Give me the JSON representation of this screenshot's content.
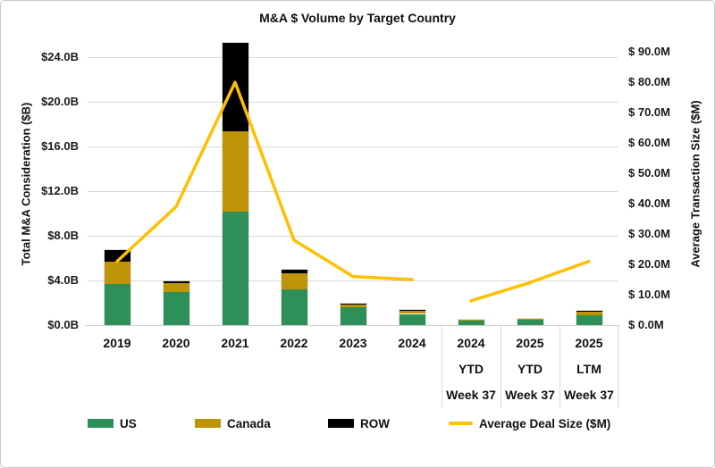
{
  "chart_data": {
    "type": "combo: stacked bar (left axis) + line (right axis)",
    "title": "M&A $ Volume by Target Country",
    "categories": [
      [
        "2019"
      ],
      [
        "2020"
      ],
      [
        "2021"
      ],
      [
        "2022"
      ],
      [
        "2023"
      ],
      [
        "2024"
      ],
      [
        "2024",
        "YTD",
        "Week 37"
      ],
      [
        "2025",
        "YTD",
        "Week 37"
      ],
      [
        "2025",
        "LTM",
        "Week 37"
      ]
    ],
    "bar_series": [
      {
        "name": "US",
        "color": "#2e8f58",
        "values_b": [
          3.7,
          3.0,
          10.2,
          3.2,
          1.6,
          1.0,
          0.45,
          0.55,
          0.9
        ]
      },
      {
        "name": "Canada",
        "color": "#bf9408",
        "values_b": [
          2.0,
          0.8,
          7.2,
          1.45,
          0.25,
          0.3,
          0.05,
          0.03,
          0.35
        ]
      },
      {
        "name": "ROW",
        "color": "#000000",
        "values_b": [
          1.0,
          0.1,
          7.9,
          0.35,
          0.05,
          0.05,
          0,
          0,
          0.05
        ]
      }
    ],
    "line_series": {
      "name": "Average Deal Size ($M)",
      "color": "#ffc000",
      "values_m": [
        21,
        39,
        80,
        28,
        16,
        15,
        8,
        14,
        21
      ],
      "gap_after_index": 5
    },
    "left_axis": {
      "title": "Total M&A Consideration ($B)",
      "max": 25.3,
      "ticks": [
        {
          "value": 0,
          "label": "$0.0B"
        },
        {
          "value": 4,
          "label": "$4.0B"
        },
        {
          "value": 8,
          "label": "$8.0B"
        },
        {
          "value": 12,
          "label": "$12.0B"
        },
        {
          "value": 16,
          "label": "$16.0B"
        },
        {
          "value": 20,
          "label": "$20.0B"
        },
        {
          "value": 24,
          "label": "$24.0B"
        }
      ]
    },
    "right_axis": {
      "title": "Average Transaction Size ($M)",
      "max": 93,
      "ticks": [
        {
          "value": 0,
          "label": "$ 0.0M"
        },
        {
          "value": 10,
          "label": "$ 10.0M"
        },
        {
          "value": 20,
          "label": "$ 20.0M"
        },
        {
          "value": 30,
          "label": "$ 30.0M"
        },
        {
          "value": 40,
          "label": "$ 40.0M"
        },
        {
          "value": 50,
          "label": "$ 50.0M"
        },
        {
          "value": 60,
          "label": "$ 60.0M"
        },
        {
          "value": 70,
          "label": "$ 70.0M"
        },
        {
          "value": 80,
          "label": "$ 80.0M"
        },
        {
          "value": 90,
          "label": "$ 90.0M"
        }
      ]
    },
    "grid_color": "#d9d9d9"
  },
  "legend": {
    "items": [
      {
        "label": "US",
        "color": "#2e8f58",
        "type": "swatch"
      },
      {
        "label": "Canada",
        "color": "#bf9408",
        "type": "swatch"
      },
      {
        "label": "ROW",
        "color": "#000000",
        "type": "swatch"
      },
      {
        "label": "Average Deal Size ($M)",
        "color": "#ffc000",
        "type": "line"
      }
    ]
  }
}
